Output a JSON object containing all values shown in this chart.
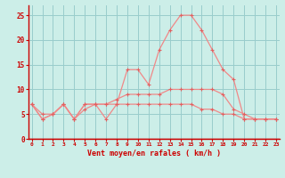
{
  "xlabel": "Vent moyen/en rafales ( km/h )",
  "x": [
    0,
    1,
    2,
    3,
    4,
    5,
    6,
    7,
    8,
    9,
    10,
    11,
    12,
    13,
    14,
    15,
    16,
    17,
    18,
    19,
    20,
    21,
    22,
    23
  ],
  "wind_gust": [
    7,
    4,
    5,
    7,
    4,
    7,
    7,
    4,
    7,
    14,
    14,
    11,
    18,
    22,
    25,
    25,
    22,
    18,
    14,
    12,
    4,
    4,
    4,
    4
  ],
  "wind_mean": [
    7,
    4,
    5,
    7,
    4,
    7,
    7,
    7,
    8,
    9,
    9,
    9,
    9,
    10,
    10,
    10,
    10,
    10,
    9,
    6,
    5,
    4,
    4,
    4
  ],
  "wind_calm": [
    7,
    5,
    5,
    7,
    4,
    6,
    7,
    7,
    7,
    7,
    7,
    7,
    7,
    7,
    7,
    7,
    6,
    6,
    5,
    5,
    4,
    4,
    4,
    4
  ],
  "line_color": "#f08888",
  "marker_color": "#e06060",
  "bg_color": "#cceee8",
  "grid_color": "#99cccc",
  "axis_color": "#cc0000",
  "text_color": "#cc0000",
  "ylim": [
    0,
    27
  ],
  "yticks": [
    0,
    5,
    10,
    15,
    20,
    25
  ],
  "xlim": [
    -0.3,
    23.3
  ]
}
